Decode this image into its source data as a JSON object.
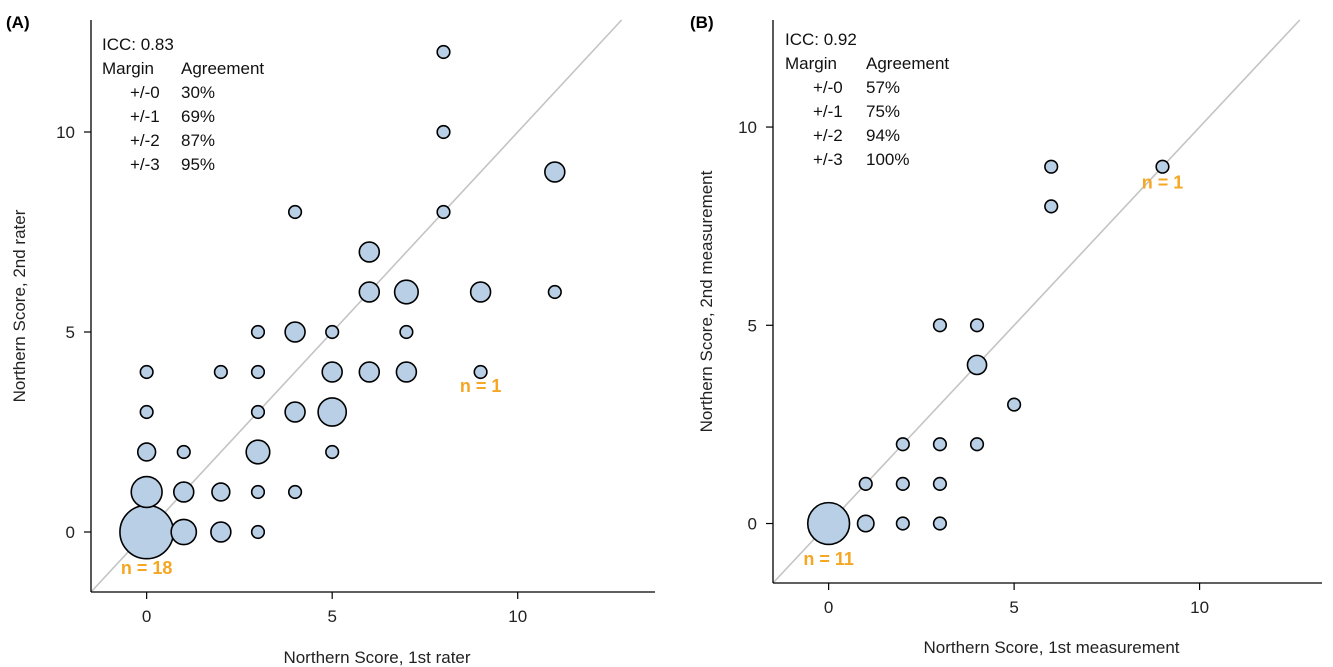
{
  "colors": {
    "bubble_fill": "#b8cfe6",
    "bubble_stroke": "#000000",
    "identity_line": "#c4c4c4",
    "annotation": "#f5a623"
  },
  "chart_data": [
    {
      "type": "scatter",
      "panel_label": "(A)",
      "title": "",
      "xlabel": "Northern Score, 1st rater",
      "ylabel": "Northern Score, 2nd rater",
      "xlim": [
        -1.5,
        13.7
      ],
      "ylim": [
        -1.5,
        12.8
      ],
      "xticks": [
        0,
        5,
        10
      ],
      "yticks": [
        0,
        5,
        10
      ],
      "identity_line": true,
      "grid": false,
      "bubble_size_encodes": "count",
      "stats": {
        "icc": "ICC: 0.83",
        "header": [
          "Margin",
          "Agreement"
        ],
        "rows": [
          [
            "+/-0",
            "30%"
          ],
          [
            "+/-1",
            "69%"
          ],
          [
            "+/-2",
            "87%"
          ],
          [
            "+/-3",
            "95%"
          ]
        ]
      },
      "annotations": [
        {
          "text": "n = 18",
          "x": 0,
          "y": -1.05
        },
        {
          "text": "n = 1",
          "x": 9,
          "y": 3.5
        }
      ],
      "points": [
        {
          "x": 0,
          "y": 0,
          "n": 18
        },
        {
          "x": 0,
          "y": 1,
          "n": 6
        },
        {
          "x": 0,
          "y": 2,
          "n": 2
        },
        {
          "x": 0,
          "y": 3,
          "n": 1
        },
        {
          "x": 0,
          "y": 4,
          "n": 1
        },
        {
          "x": 1,
          "y": 0,
          "n": 4
        },
        {
          "x": 1,
          "y": 1,
          "n": 2.5
        },
        {
          "x": 1,
          "y": 2,
          "n": 1
        },
        {
          "x": 2,
          "y": 0,
          "n": 2.5
        },
        {
          "x": 2,
          "y": 1,
          "n": 2
        },
        {
          "x": 2,
          "y": 4,
          "n": 1
        },
        {
          "x": 3,
          "y": 0,
          "n": 1
        },
        {
          "x": 3,
          "y": 1,
          "n": 1
        },
        {
          "x": 3,
          "y": 2,
          "n": 3.5
        },
        {
          "x": 3,
          "y": 3,
          "n": 1
        },
        {
          "x": 3,
          "y": 4,
          "n": 1
        },
        {
          "x": 3,
          "y": 5,
          "n": 1
        },
        {
          "x": 4,
          "y": 1,
          "n": 1
        },
        {
          "x": 4,
          "y": 3,
          "n": 2.5
        },
        {
          "x": 4,
          "y": 5,
          "n": 2.5
        },
        {
          "x": 4,
          "y": 8,
          "n": 1
        },
        {
          "x": 5,
          "y": 2,
          "n": 1
        },
        {
          "x": 5,
          "y": 3,
          "n": 5
        },
        {
          "x": 5,
          "y": 4,
          "n": 2.5
        },
        {
          "x": 5,
          "y": 5,
          "n": 1
        },
        {
          "x": 6,
          "y": 4,
          "n": 2.5
        },
        {
          "x": 6,
          "y": 6,
          "n": 2.5
        },
        {
          "x": 6,
          "y": 7,
          "n": 2.5
        },
        {
          "x": 7,
          "y": 4,
          "n": 2.5
        },
        {
          "x": 7,
          "y": 5,
          "n": 1
        },
        {
          "x": 7,
          "y": 6,
          "n": 3.5
        },
        {
          "x": 8,
          "y": 8,
          "n": 1
        },
        {
          "x": 8,
          "y": 10,
          "n": 1
        },
        {
          "x": 8,
          "y": 12,
          "n": 1
        },
        {
          "x": 9,
          "y": 4,
          "n": 1
        },
        {
          "x": 9,
          "y": 6,
          "n": 2.5
        },
        {
          "x": 11,
          "y": 6,
          "n": 1
        },
        {
          "x": 11,
          "y": 9,
          "n": 2.5
        }
      ]
    },
    {
      "type": "scatter",
      "panel_label": "(B)",
      "title": "",
      "xlabel": "Northern Score, 1st measurement",
      "ylabel": "Northern Score, 2nd measurement",
      "xlim": [
        -1.5,
        13.3
      ],
      "ylim": [
        -1.5,
        12.7
      ],
      "xticks": [
        0,
        5,
        10
      ],
      "yticks": [
        0,
        5,
        10
      ],
      "identity_line": true,
      "grid": false,
      "bubble_size_encodes": "count",
      "stats": {
        "icc": "ICC: 0.92",
        "header": [
          "Margin",
          "Agreement"
        ],
        "rows": [
          [
            "+/-0",
            "57%"
          ],
          [
            "+/-1",
            "75%"
          ],
          [
            "+/-2",
            "94%"
          ],
          [
            "+/-3",
            "100%"
          ]
        ]
      },
      "annotations": [
        {
          "text": "n = 11",
          "x": 0,
          "y": -1.05
        },
        {
          "text": "n = 1",
          "x": 9,
          "y": 8.45
        }
      ],
      "points": [
        {
          "x": 0,
          "y": 0,
          "n": 11
        },
        {
          "x": 1,
          "y": 0,
          "n": 1.7
        },
        {
          "x": 1,
          "y": 1,
          "n": 1
        },
        {
          "x": 2,
          "y": 0,
          "n": 1
        },
        {
          "x": 2,
          "y": 1,
          "n": 1
        },
        {
          "x": 2,
          "y": 2,
          "n": 1
        },
        {
          "x": 3,
          "y": 0,
          "n": 1
        },
        {
          "x": 3,
          "y": 1,
          "n": 1
        },
        {
          "x": 3,
          "y": 2,
          "n": 1
        },
        {
          "x": 3,
          "y": 5,
          "n": 1
        },
        {
          "x": 4,
          "y": 2,
          "n": 1
        },
        {
          "x": 4,
          "y": 4,
          "n": 2.3
        },
        {
          "x": 4,
          "y": 5,
          "n": 1
        },
        {
          "x": 5,
          "y": 3,
          "n": 1
        },
        {
          "x": 6,
          "y": 8,
          "n": 1
        },
        {
          "x": 6,
          "y": 9,
          "n": 1
        },
        {
          "x": 9,
          "y": 9,
          "n": 1
        }
      ]
    }
  ]
}
